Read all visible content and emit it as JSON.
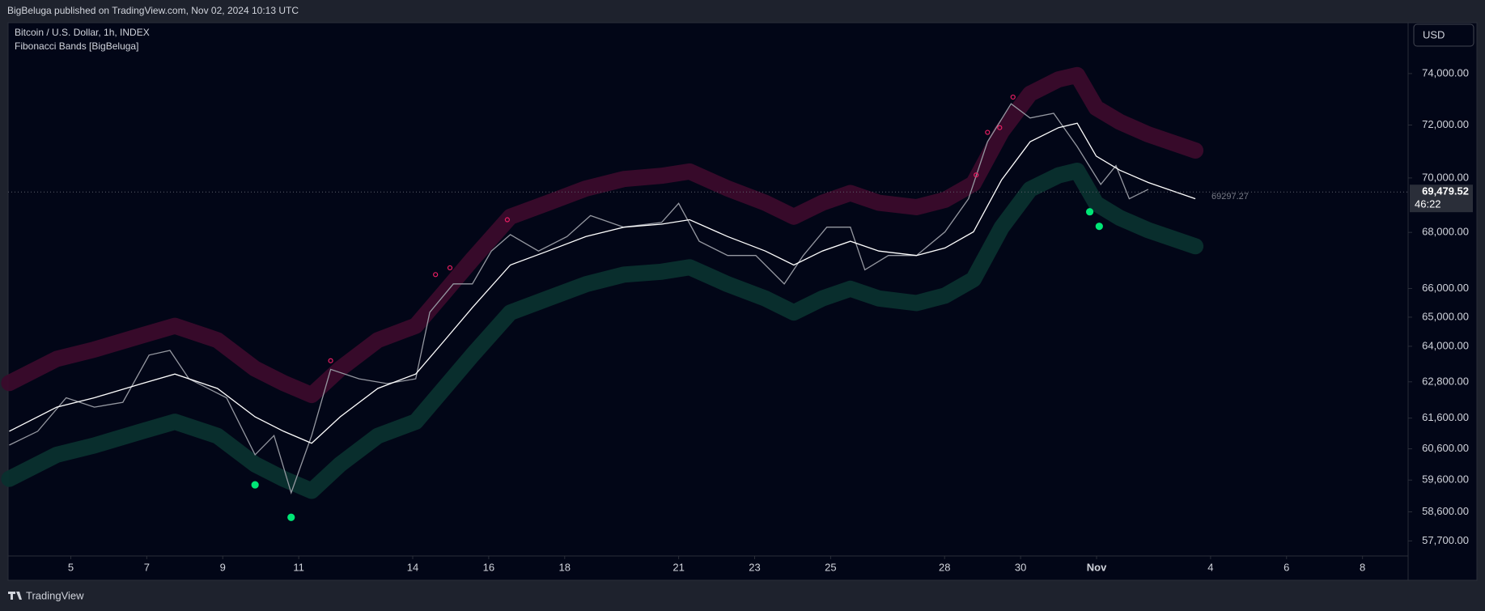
{
  "header": "BigBeluga published on TradingView.com, Nov 02, 2024 10:13 UTC",
  "footer": "TradingView",
  "currency": "USD",
  "chart_data": {
    "type": "line",
    "title": "Bitcoin / U.S. Dollar, 1h, INDEX",
    "subtitle": "Fibonacci Bands [BigBeluga]",
    "log": true,
    "grid": false,
    "ylim": [
      57240,
      76000
    ],
    "yticks": [
      {
        "value": 74000,
        "label": "74,000.00"
      },
      {
        "value": 72000,
        "label": "72,000.00"
      },
      {
        "value": 70000,
        "label": "70,000.00"
      },
      {
        "value": 68000,
        "label": "68,000.00"
      },
      {
        "value": 66000,
        "label": "66,000.00"
      },
      {
        "value": 65000,
        "label": "65,000.00"
      },
      {
        "value": 64000,
        "label": "64,000.00"
      },
      {
        "value": 62800,
        "label": "62,800.00"
      },
      {
        "value": 61600,
        "label": "61,600.00"
      },
      {
        "value": 60600,
        "label": "60,600.00"
      },
      {
        "value": 59600,
        "label": "59,600.00"
      },
      {
        "value": 58600,
        "label": "58,600.00"
      },
      {
        "value": 57700,
        "label": "57,700.00"
      }
    ],
    "xlim": [
      3.35,
      40.2
    ],
    "xticks": [
      5,
      7,
      9,
      11,
      14,
      16,
      18,
      21,
      23,
      25,
      28,
      30,
      {
        "value": 32,
        "label": "Nov"
      },
      {
        "value": 35,
        "label": "4"
      },
      {
        "value": 37,
        "label": "6"
      },
      {
        "value": 39,
        "label": "8"
      }
    ],
    "series": [
      {
        "style": "band",
        "color": "#3a0b2b",
        "x": [
          3.38,
          4.63,
          5.62,
          6.87,
          7.74,
          8.86,
          9.85,
          10.6,
          11.34,
          12.09,
          13.08,
          14.08,
          14.83,
          15.57,
          16.57,
          17.56,
          18.56,
          19.56,
          20.55,
          21.29,
          22.29,
          23.28,
          24.03,
          24.78,
          25.52,
          26.27,
          27.26,
          28.01,
          28.76,
          29.5,
          30.25,
          31.0,
          31.49,
          31.99,
          32.61,
          33.36,
          34.6
        ],
        "values": [
          62760,
          63570,
          63890,
          64370,
          64700,
          64210,
          63240,
          62760,
          62360,
          63240,
          64210,
          64700,
          65860,
          67030,
          68570,
          69080,
          69610,
          69960,
          70080,
          70240,
          69610,
          69080,
          68570,
          69080,
          69440,
          69080,
          68920,
          69190,
          69790,
          71750,
          73210,
          73770,
          73940,
          72660,
          72120,
          71640,
          71030
        ]
      },
      {
        "style": "band",
        "color": "#0a302e",
        "x": [
          3.38,
          4.63,
          5.62,
          6.87,
          7.74,
          8.86,
          9.85,
          10.6,
          11.34,
          12.09,
          13.08,
          14.08,
          14.83,
          15.57,
          16.57,
          17.56,
          18.56,
          19.56,
          20.55,
          21.29,
          22.29,
          23.28,
          24.03,
          24.78,
          25.52,
          26.27,
          27.26,
          28.01,
          28.76,
          29.5,
          30.25,
          31.0,
          31.49,
          31.99,
          32.61,
          33.36,
          34.6
        ],
        "values": [
          59640,
          60410,
          60710,
          61170,
          61480,
          61020,
          60100,
          59640,
          59260,
          60100,
          61020,
          61480,
          62590,
          63700,
          65160,
          65650,
          66150,
          66490,
          66590,
          66750,
          66150,
          65650,
          65160,
          65650,
          65990,
          65650,
          65490,
          65750,
          66320,
          68180,
          69580,
          70100,
          70270,
          69050,
          68530,
          68080,
          67500
        ]
      },
      {
        "style": "price",
        "color": "#9598a1",
        "x": [
          3.38,
          4.13,
          4.88,
          5.62,
          6.37,
          7.06,
          7.61,
          8.11,
          9.1,
          9.85,
          10.35,
          10.8,
          11.34,
          11.84,
          12.59,
          13.33,
          14.08,
          14.45,
          15.07,
          15.57,
          16.07,
          16.57,
          17.31,
          18.06,
          18.68,
          19.55,
          20.55,
          21.0,
          21.54,
          22.29,
          23.03,
          23.78,
          24.28,
          24.9,
          25.52,
          25.9,
          26.52,
          27.26,
          28.01,
          28.63,
          29.13,
          29.75,
          30.25,
          30.87,
          31.49,
          32.11,
          32.51,
          32.86,
          33.36
        ],
        "values": [
          60720,
          61170,
          62270,
          61960,
          62120,
          63700,
          63860,
          62900,
          62270,
          60410,
          61030,
          59200,
          61030,
          63220,
          62900,
          62740,
          62900,
          65170,
          66160,
          66160,
          67330,
          67920,
          67330,
          67850,
          68610,
          68190,
          68360,
          69060,
          67680,
          67170,
          67170,
          66160,
          67170,
          68190,
          68190,
          66660,
          67170,
          67170,
          68020,
          69230,
          71360,
          72820,
          72270,
          72450,
          71180,
          69760,
          70460,
          69230,
          69580
        ]
      },
      {
        "style": "line",
        "color": "#ffffff",
        "x": [
          3.38,
          4.63,
          5.62,
          6.87,
          7.74,
          8.86,
          9.85,
          10.6,
          11.34,
          12.09,
          13.08,
          14.08,
          14.83,
          15.57,
          16.57,
          17.56,
          18.56,
          19.56,
          20.55,
          21.29,
          22.29,
          23.28,
          24.03,
          24.78,
          25.52,
          26.27,
          27.26,
          28.01,
          28.76,
          29.5,
          30.25,
          31.0,
          31.49,
          31.99,
          32.61,
          33.36,
          34.6
        ],
        "values": [
          61170,
          61960,
          62270,
          62740,
          63060,
          62580,
          61640,
          61170,
          60780,
          61640,
          62580,
          63060,
          64190,
          65330,
          66830,
          67330,
          67850,
          68190,
          68300,
          68460,
          67850,
          67330,
          66830,
          67330,
          67680,
          67330,
          67170,
          67440,
          68020,
          69930,
          71360,
          71900,
          72070,
          70820,
          70290,
          69830,
          69230
        ]
      },
      {
        "style": "dots",
        "color": "#e91e63",
        "size": 2.5,
        "x": [
          11.84,
          14.6,
          14.98,
          16.49,
          28.83,
          29.13,
          29.45,
          29.8
        ],
        "values": [
          63510,
          66490,
          66730,
          68460,
          70110,
          71720,
          71900,
          73080
        ]
      },
      {
        "style": "dots",
        "color": "#00e676",
        "size": 4,
        "x": [
          9.85,
          10.8,
          31.82,
          32.07
        ],
        "values": [
          59450,
          58430,
          68750,
          68220
        ]
      }
    ],
    "last_price": {
      "value": 69479.52,
      "label": "69,479.52"
    },
    "countdown": "46:22",
    "basis_end": 69297.27
  }
}
